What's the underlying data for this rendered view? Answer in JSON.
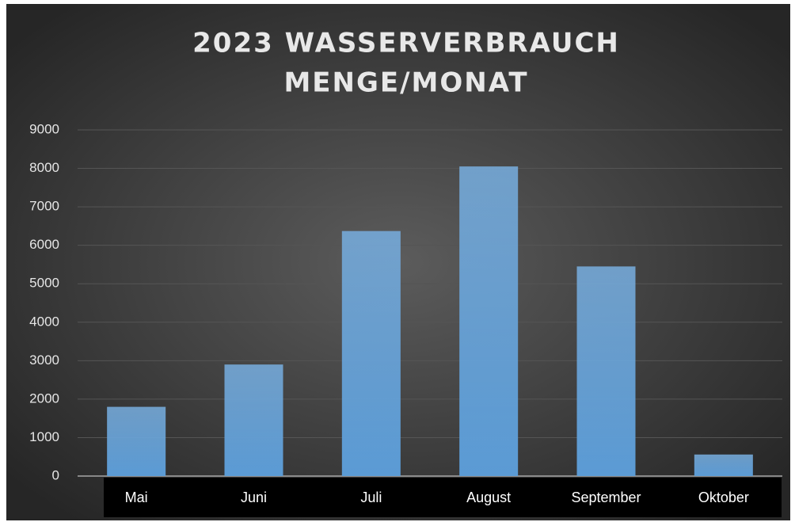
{
  "chart_data": {
    "type": "bar",
    "title": [
      "2023 WASSERVERBRAUCH",
      "MENGE/MONAT"
    ],
    "categories": [
      "Mai",
      "Juni",
      "Juli",
      "August",
      "September",
      "Oktober"
    ],
    "values": [
      1800,
      2900,
      6370,
      8050,
      5450,
      560
    ],
    "color": "#5b9bd5",
    "ylim": [
      0,
      9000
    ],
    "yticks": [
      0,
      1000,
      2000,
      3000,
      4000,
      5000,
      6000,
      7000,
      8000,
      9000
    ],
    "grid": true
  }
}
